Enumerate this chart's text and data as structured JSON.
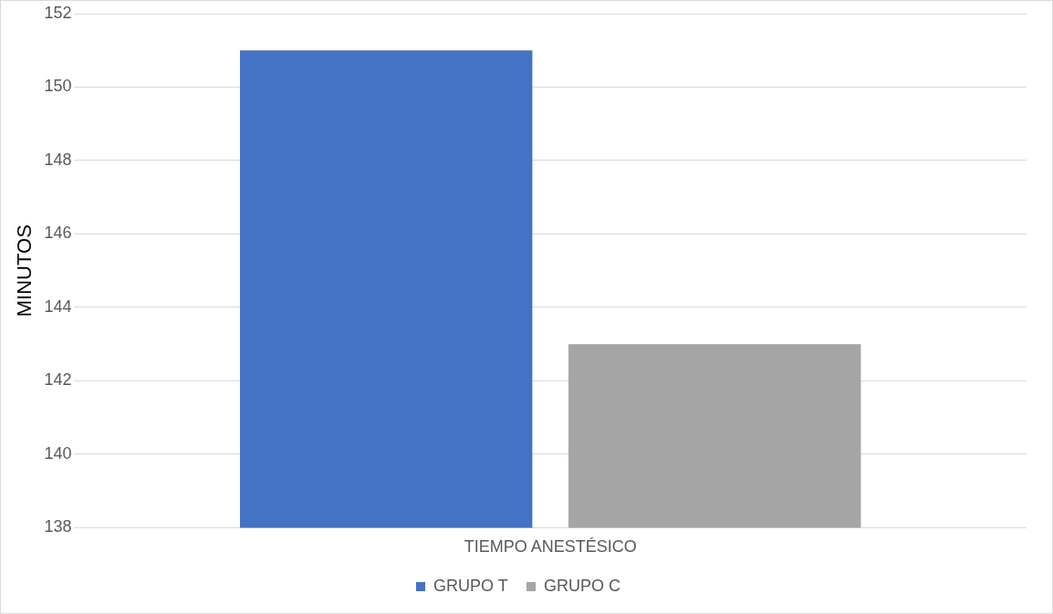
{
  "chart_data": {
    "type": "bar",
    "ylabel": "MINUTOS",
    "categories": [
      "TIEMPO ANESTÉSICO"
    ],
    "series": [
      {
        "name": "GRUPO T",
        "color": "#4472c4",
        "values": [
          151
        ]
      },
      {
        "name": "GRUPO C",
        "color": "#a5a5a5",
        "values": [
          143
        ]
      }
    ],
    "ylim": [
      138,
      152
    ],
    "yticks": [
      138,
      140,
      142,
      144,
      146,
      148,
      150,
      152
    ],
    "grid": "y",
    "legend": "bottom"
  }
}
